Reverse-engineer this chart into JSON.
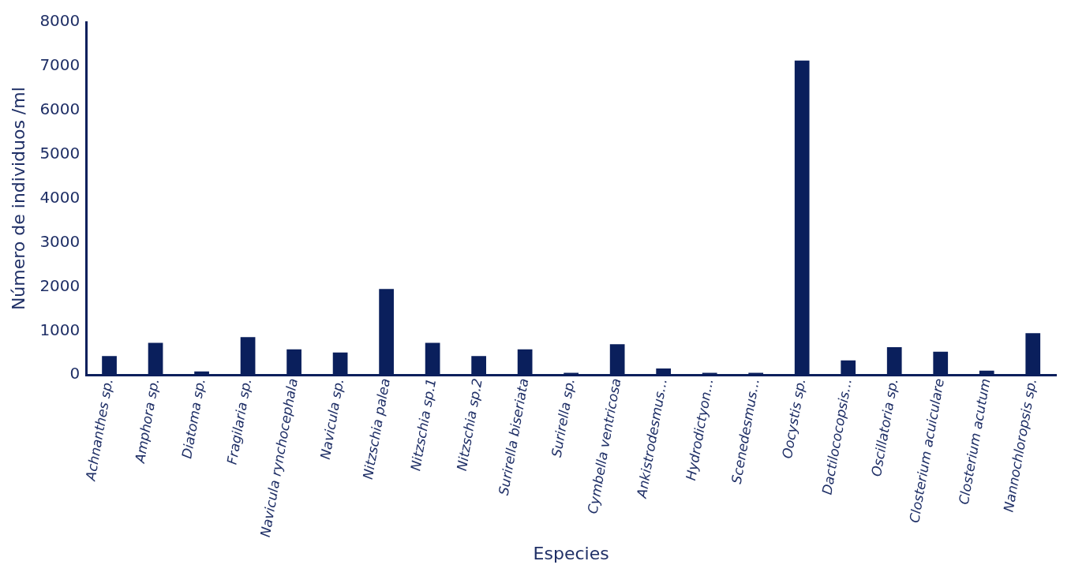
{
  "chart_data": {
    "type": "bar",
    "xlabel": "Especies",
    "ylabel": "Número de individuos /ml",
    "categories": [
      "Achnanthes sp.",
      "Amphora sp.",
      "Diatoma sp.",
      "Fragilaria sp.",
      "Navicula rynchocephala",
      "Navicula sp.",
      "Nitzschia palea",
      "Nitzschia sp.1",
      "Nitzschia sp.2",
      "Surirella biseriata",
      "Surirella sp.",
      "Cymbella ventricosa",
      "Ankistrodesmus…",
      "Hydrodictyon…",
      "Scenedesmus…",
      "Oocystis sp.",
      "Dactilococopsis…",
      "Oscillatoria sp.",
      "Closterium acuiculare",
      "Closterium acutum",
      "Nannochloropsis sp."
    ],
    "values": [
      430,
      730,
      80,
      860,
      580,
      510,
      1950,
      730,
      430,
      580,
      50,
      700,
      150,
      50,
      50,
      7130,
      330,
      630,
      530,
      100,
      950
    ],
    "color": "#0a1f5c",
    "ylim": [
      0,
      8000
    ],
    "yticks": [
      0,
      1000,
      2000,
      3000,
      4000,
      5000,
      6000,
      7000,
      8000
    ],
    "grid": false,
    "legend": false
  }
}
